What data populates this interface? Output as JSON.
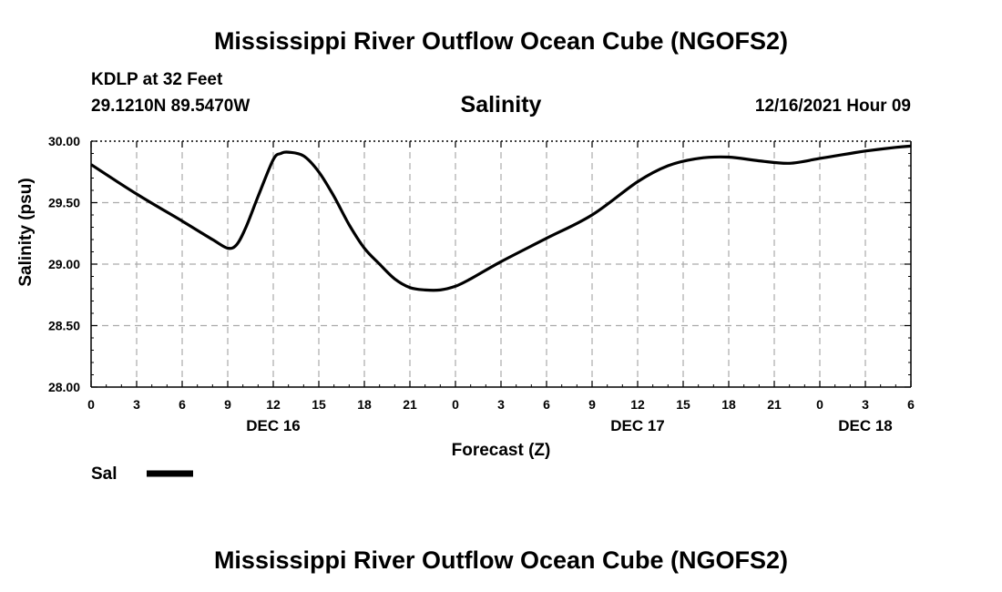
{
  "header": {
    "title": "Mississippi River Outflow Ocean Cube (NGOFS2)",
    "station": "KDLP at 32 Feet",
    "coords": "29.1210N  89.5470W",
    "timestamp": "12/16/2021 Hour 09",
    "footer_title": "Mississippi River Outflow Ocean Cube (NGOFS2)"
  },
  "chart_data": {
    "type": "line",
    "title": "Salinity",
    "xlabel": "Forecast (Z)",
    "ylabel": "Salinity (psu)",
    "ylim": [
      28.0,
      30.0
    ],
    "yticks": [
      "28.00",
      "28.50",
      "29.00",
      "29.50",
      "30.00"
    ],
    "xlim": [
      0,
      54
    ],
    "xtick_labels": [
      "0",
      "3",
      "6",
      "9",
      "12",
      "15",
      "18",
      "21",
      "0",
      "3",
      "6",
      "9",
      "12",
      "15",
      "18",
      "21",
      "0",
      "3",
      "6"
    ],
    "day_labels": [
      {
        "label": "DEC 16",
        "hour": 12
      },
      {
        "label": "DEC 17",
        "hour": 36
      },
      {
        "label": "DEC 18",
        "hour": 51
      }
    ],
    "grid": true,
    "legend": [
      {
        "name": "Sal",
        "color": "#000000"
      }
    ],
    "series": [
      {
        "name": "Sal",
        "x": [
          0,
          3,
          6,
          8,
          9,
          9.6,
          10.2,
          11,
          12,
          12.5,
          13,
          14,
          15,
          16,
          17,
          18,
          19,
          20,
          21,
          22,
          23,
          24,
          25,
          27,
          30,
          33,
          36,
          38,
          40,
          42,
          44,
          46,
          48,
          49,
          50,
          51,
          53,
          54
        ],
        "values": [
          29.81,
          29.57,
          29.35,
          29.2,
          29.13,
          29.16,
          29.3,
          29.55,
          29.85,
          29.9,
          29.91,
          29.88,
          29.75,
          29.55,
          29.32,
          29.13,
          29.0,
          28.88,
          28.81,
          28.79,
          28.79,
          28.82,
          28.88,
          29.02,
          29.21,
          29.4,
          29.67,
          29.8,
          29.86,
          29.87,
          29.84,
          29.82,
          29.86,
          29.88,
          29.9,
          29.92,
          29.95,
          29.96
        ]
      }
    ]
  }
}
